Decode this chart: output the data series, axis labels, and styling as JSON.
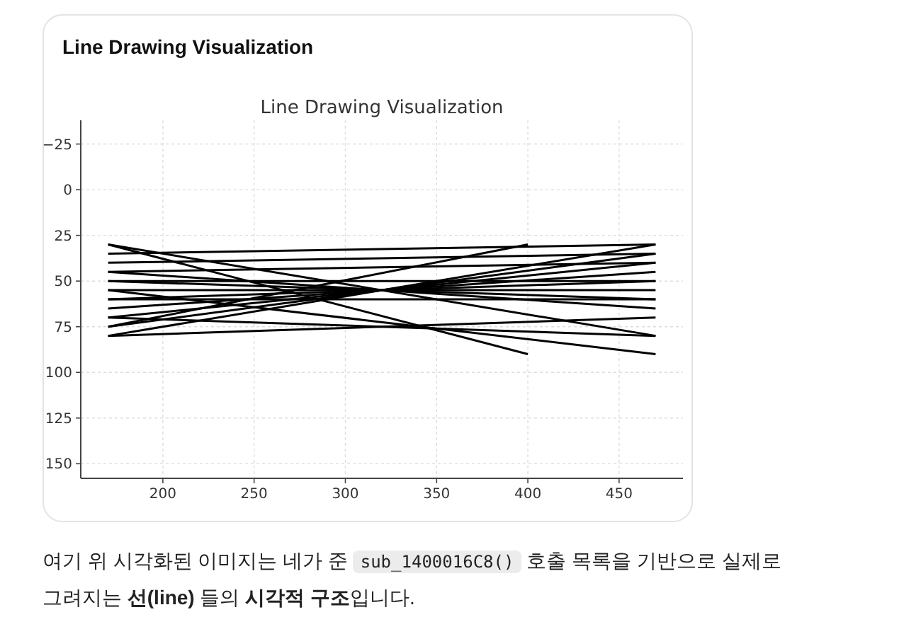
{
  "chart_data": {
    "type": "line",
    "title": "Line Drawing Visualization",
    "subtitle": "Line Drawing Visualization",
    "annotations": [
      "여기 위 시각화된 이미지는 네가 준 sub_1400016C8() 호출 목록을 기반으로 실제로 그려지는 **선(line)** 들의 **시각적 구조**입니다."
    ],
    "xlim": [
      155,
      485
    ],
    "ylim": [
      158,
      -38
    ],
    "xticks": [
      200,
      250,
      300,
      350,
      400,
      450
    ],
    "yticks": [
      -25,
      0,
      25,
      50,
      75,
      100,
      125,
      150
    ],
    "grid": true,
    "series": [
      {
        "color": "#000000",
        "x": [
          170,
          470
        ],
        "values": [
          35,
          30
        ]
      },
      {
        "color": "#000000",
        "x": [
          170,
          470
        ],
        "values": [
          40,
          35
        ]
      },
      {
        "color": "#000000",
        "x": [
          170,
          400
        ],
        "values": [
          30,
          90
        ]
      },
      {
        "color": "#000000",
        "x": [
          170,
          400
        ],
        "values": [
          75,
          30
        ]
      },
      {
        "color": "#000000",
        "x": [
          170,
          470
        ],
        "values": [
          30,
          80
        ]
      },
      {
        "color": "#000000",
        "x": [
          170,
          470
        ],
        "values": [
          45,
          65
        ]
      },
      {
        "color": "#000000",
        "x": [
          170,
          470
        ],
        "values": [
          50,
          60
        ]
      },
      {
        "color": "#000000",
        "x": [
          170,
          470
        ],
        "values": [
          55,
          55
        ]
      },
      {
        "color": "#000000",
        "x": [
          170,
          470
        ],
        "values": [
          60,
          50
        ]
      },
      {
        "color": "#000000",
        "x": [
          170,
          470
        ],
        "values": [
          65,
          45
        ]
      },
      {
        "color": "#000000",
        "x": [
          170,
          470
        ],
        "values": [
          70,
          40
        ]
      },
      {
        "color": "#000000",
        "x": [
          170,
          470
        ],
        "values": [
          75,
          35
        ]
      },
      {
        "color": "#000000",
        "x": [
          170,
          470
        ],
        "values": [
          80,
          30
        ]
      },
      {
        "color": "#000000",
        "x": [
          170,
          470
        ],
        "values": [
          55,
          90
        ]
      },
      {
        "color": "#000000",
        "x": [
          170,
          470
        ],
        "values": [
          70,
          80
        ]
      },
      {
        "color": "#000000",
        "x": [
          170,
          470
        ],
        "values": [
          80,
          70
        ]
      },
      {
        "color": "#000000",
        "x": [
          170,
          470
        ],
        "values": [
          50,
          50
        ]
      },
      {
        "color": "#000000",
        "x": [
          170,
          470
        ],
        "values": [
          60,
          60
        ]
      },
      {
        "color": "#000000",
        "x": [
          170,
          470
        ],
        "values": [
          45,
          40
        ]
      }
    ]
  }
}
